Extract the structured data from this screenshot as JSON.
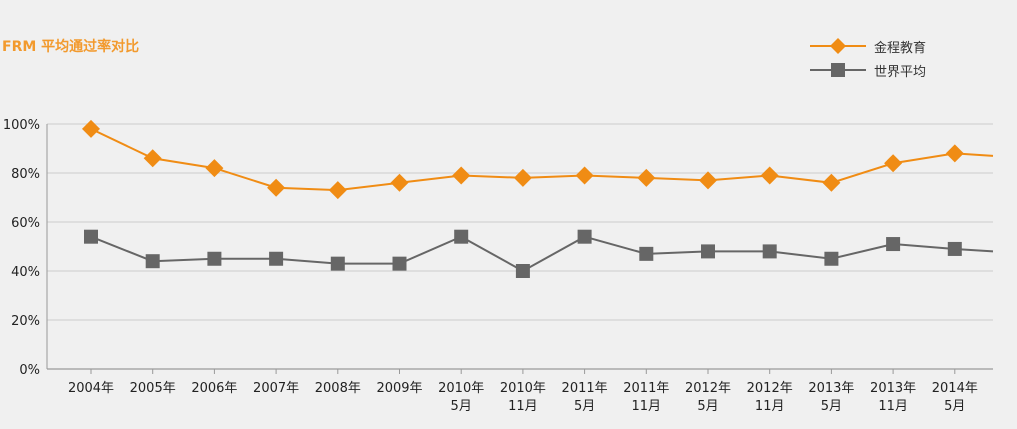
{
  "title": "FRM 平均通过率对比",
  "legend": [
    {
      "name": "金程教育",
      "color": "#f08c14",
      "marker": "diamond-icon"
    },
    {
      "name": "世界平均",
      "color": "#666666",
      "marker": "square-icon"
    }
  ],
  "chart_data": {
    "type": "line",
    "title": "FRM 平均通过率对比",
    "xlabel": "",
    "ylabel": "",
    "ylim": [
      0,
      100
    ],
    "yticks": [
      "0%",
      "20%",
      "40%",
      "60%",
      "80%",
      "100%"
    ],
    "yticks_values": [
      0,
      20,
      40,
      60,
      80,
      100
    ],
    "grid": true,
    "legend_position": "top-right",
    "categories": [
      [
        "2004年"
      ],
      [
        "2005年"
      ],
      [
        "2006年"
      ],
      [
        "2007年"
      ],
      [
        "2008年"
      ],
      [
        "2009年"
      ],
      [
        "2010年",
        "5月"
      ],
      [
        "2010年",
        "11月"
      ],
      [
        "2011年",
        "5月"
      ],
      [
        "2011年",
        "11月"
      ],
      [
        "2012年",
        "5月"
      ],
      [
        "2012年",
        "11月"
      ],
      [
        "2013年",
        "5月"
      ],
      [
        "2013年",
        "11月"
      ],
      [
        "2014年",
        "5月"
      ]
    ],
    "series": [
      {
        "name": "金程教育",
        "color": "#f08c14",
        "marker": "diamond",
        "values": [
          98,
          86,
          82,
          74,
          73,
          76,
          79,
          78,
          79,
          78,
          77,
          79,
          76,
          84,
          88
        ],
        "trailing_value": 87
      },
      {
        "name": "世界平均",
        "color": "#666666",
        "marker": "square",
        "values": [
          54,
          44,
          45,
          45,
          43,
          43,
          54,
          40,
          54,
          47,
          48,
          48,
          45,
          51,
          49
        ],
        "trailing_value": 48
      }
    ]
  }
}
